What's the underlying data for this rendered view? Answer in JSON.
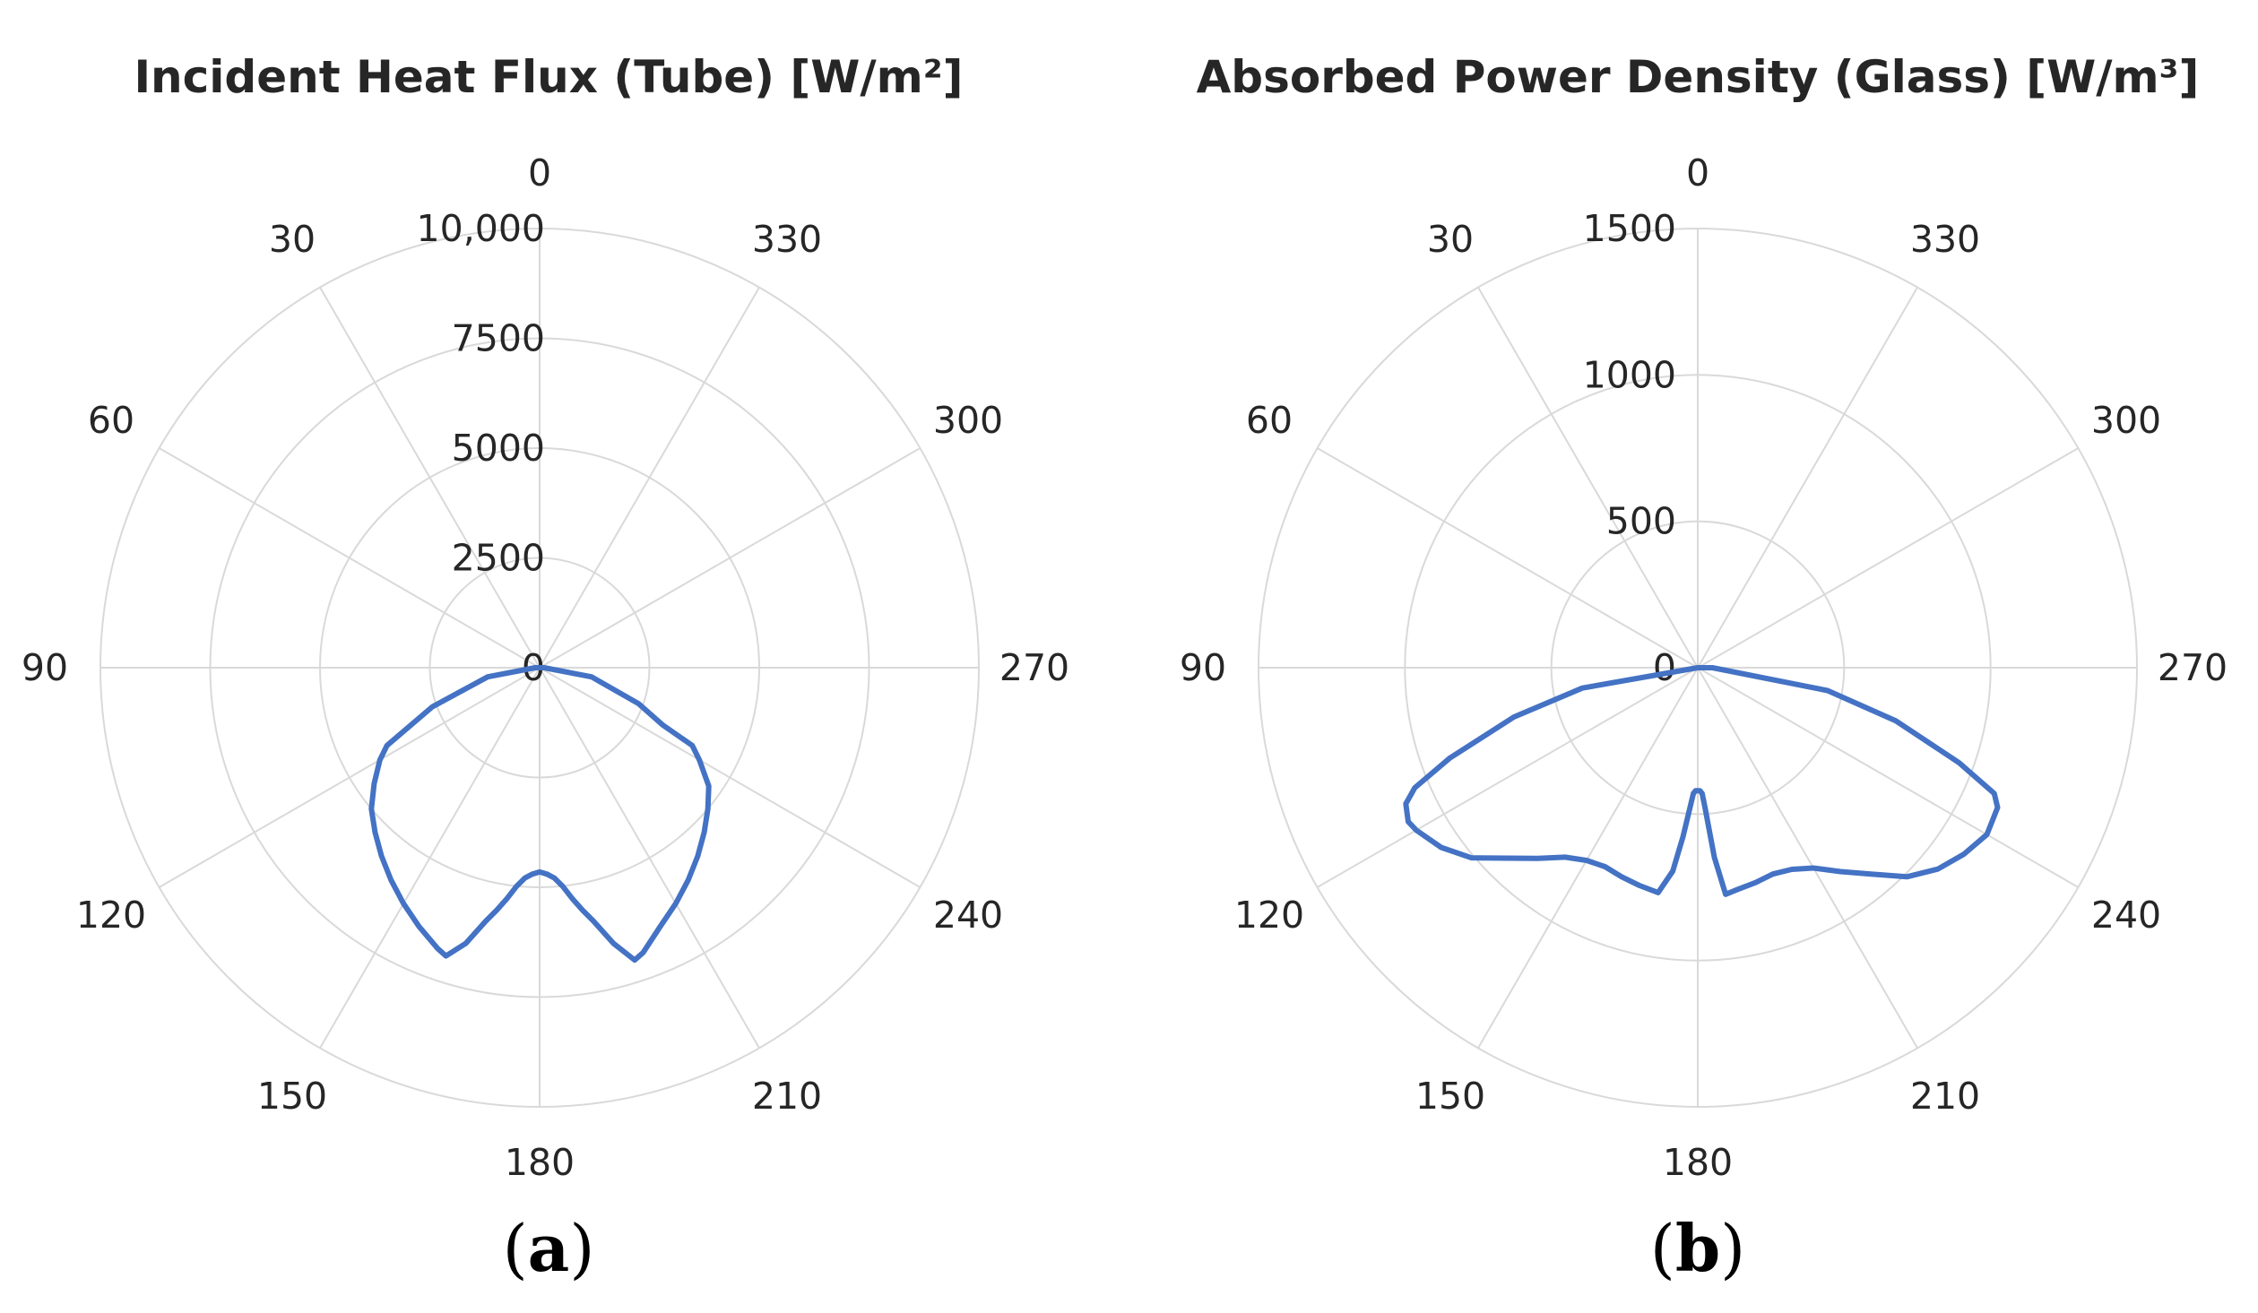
{
  "chart_data": [
    {
      "type": "polar-line",
      "title": "Incident Heat Flux (Tube) [W/m²]",
      "panel_label": "a",
      "angular_ticks": [
        "0",
        "30",
        "60",
        "90",
        "120",
        "150",
        "180",
        "210",
        "240",
        "270",
        "300",
        "330"
      ],
      "angular_direction": "counterclockwise",
      "zero_location": "top",
      "radial_ticks": [
        "0",
        "2500",
        "5000",
        "7500",
        "10,000"
      ],
      "rlim": [
        0,
        10000
      ],
      "grid": true,
      "series": [
        {
          "color": "#4472C4",
          "theta": [
            0,
            10,
            20,
            30,
            40,
            50,
            60,
            70,
            80,
            90,
            100,
            110,
            117,
            120,
            125,
            130,
            135,
            140,
            145,
            150,
            155,
            160,
            162,
            165,
            168,
            170,
            172,
            174,
            176,
            178,
            180,
            182,
            184,
            186,
            188,
            190,
            192,
            195,
            198,
            200,
            205,
            210,
            215,
            220,
            225,
            230,
            235,
            240,
            243,
            245,
            250,
            260,
            270,
            280,
            290,
            300,
            310,
            320,
            330,
            340,
            350,
            359
          ],
          "r": [
            0,
            0,
            0,
            0,
            0,
            0,
            0,
            0,
            0,
            100,
            1200,
            2600,
            3900,
            4200,
            4600,
            5000,
            5300,
            5600,
            5900,
            6200,
            6500,
            6800,
            6900,
            6500,
            5900,
            5600,
            5300,
            5000,
            4800,
            4700,
            4650,
            4700,
            4800,
            5000,
            5300,
            5600,
            5900,
            6500,
            7000,
            6900,
            6500,
            6200,
            5900,
            5600,
            5300,
            5000,
            4700,
            4200,
            3900,
            3100,
            2400,
            1200,
            100,
            0,
            0,
            0,
            0,
            0,
            0,
            0,
            0,
            0
          ]
        }
      ]
    },
    {
      "type": "polar-line",
      "title": "Absorbed Power Density (Glass) [W/m³]",
      "panel_label": "b",
      "angular_ticks": [
        "0",
        "30",
        "60",
        "90",
        "120",
        "150",
        "180",
        "210",
        "240",
        "270",
        "300",
        "330"
      ],
      "angular_direction": "counterclockwise",
      "zero_location": "top",
      "radial_ticks": [
        "0",
        "500",
        "1000",
        "1500"
      ],
      "rlim": [
        0,
        1500
      ],
      "grid": true,
      "series": [
        {
          "color": "#4472C4",
          "theta": [
            0,
            10,
            20,
            30,
            40,
            50,
            60,
            70,
            80,
            90,
            100,
            105,
            110,
            113,
            115,
            118,
            120,
            125,
            130,
            135,
            140,
            145,
            150,
            155,
            160,
            165,
            170,
            173,
            175,
            177,
            178,
            179,
            180,
            181,
            182,
            183,
            185,
            187,
            190,
            195,
            200,
            205,
            210,
            215,
            220,
            225,
            230,
            235,
            240,
            245,
            247,
            250,
            255,
            260,
            270,
            280,
            290,
            300,
            310,
            320,
            330,
            340,
            350,
            359
          ],
          "r": [
            0,
            0,
            0,
            0,
            0,
            0,
            0,
            0,
            0,
            0,
            400,
            650,
            900,
            1050,
            1100,
            1120,
            1110,
            1070,
            1010,
            920,
            850,
            790,
            760,
            750,
            760,
            770,
            780,
            700,
            580,
            470,
            430,
            420,
            420,
            420,
            430,
            480,
            650,
            780,
            770,
            760,
            750,
            760,
            790,
            850,
            920,
            1010,
            1070,
            1110,
            1140,
            1130,
            1100,
            950,
            700,
            450,
            50,
            0,
            0,
            0,
            0,
            0,
            0,
            0,
            0,
            0
          ]
        }
      ]
    }
  ]
}
